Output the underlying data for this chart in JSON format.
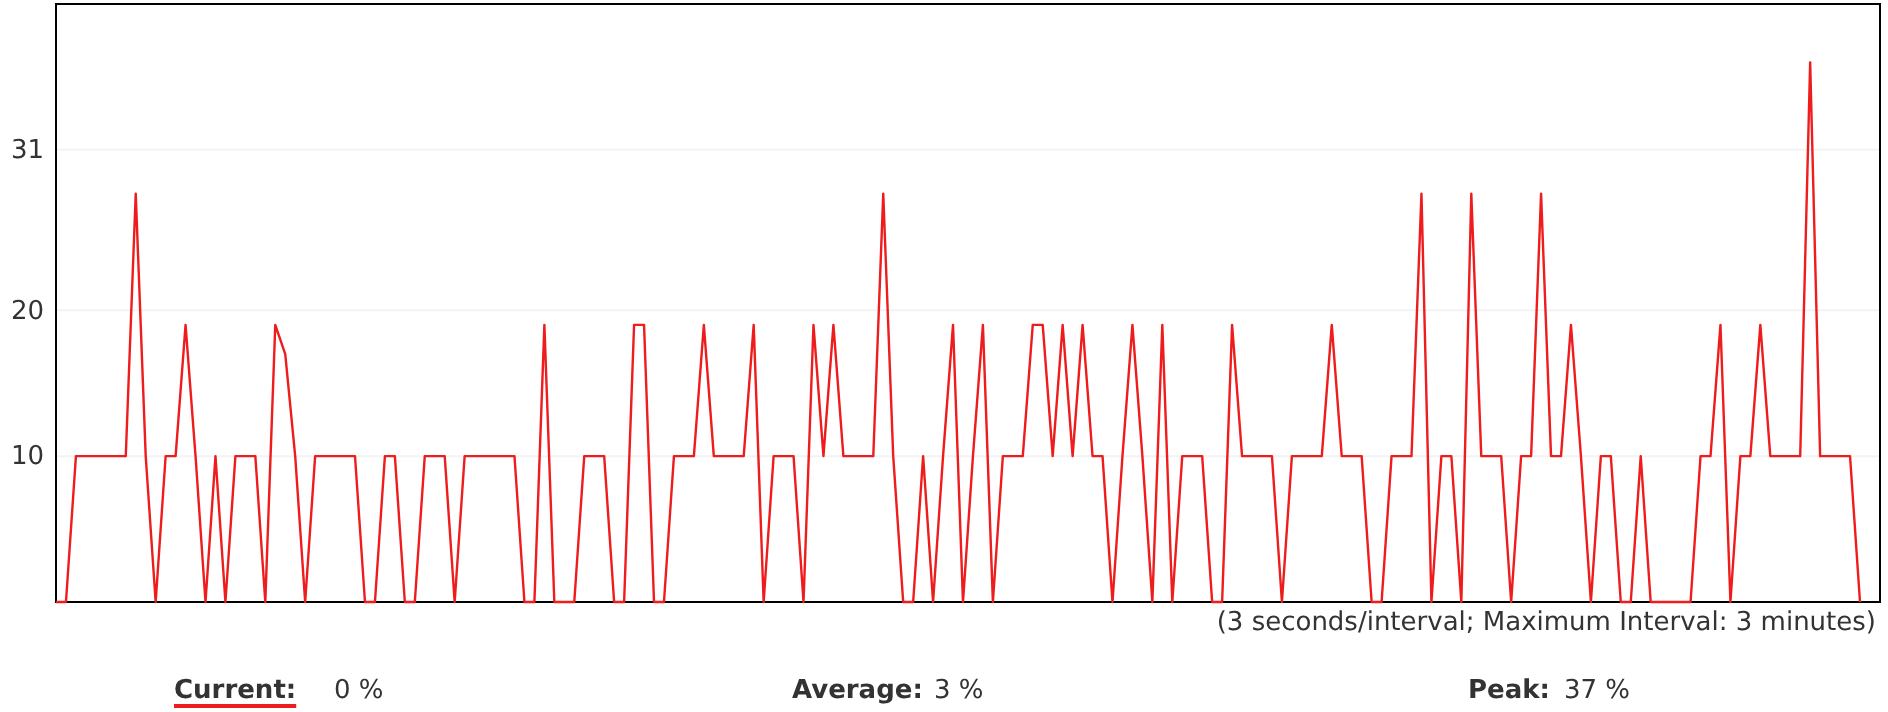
{
  "chart_data": {
    "type": "line",
    "categories": [
      null,
      null,
      null,
      null,
      null,
      null,
      null,
      null,
      null,
      null,
      null,
      null,
      null,
      null,
      null,
      null,
      null,
      null,
      null,
      null,
      null,
      null,
      null,
      null,
      null,
      null,
      null,
      null,
      null,
      null,
      null,
      null,
      null,
      null,
      null,
      null,
      null,
      null,
      null,
      null,
      null,
      null,
      null,
      null,
      null,
      null,
      null,
      null,
      null,
      null,
      null,
      null,
      null,
      null,
      null,
      null,
      null,
      null,
      null,
      null,
      null,
      null,
      null,
      null,
      null,
      null,
      null,
      null,
      null,
      null,
      null,
      null,
      null,
      null,
      null,
      null,
      null,
      null,
      null,
      null,
      null,
      null,
      null,
      null,
      null,
      null,
      null,
      null,
      null,
      null,
      null,
      null,
      null,
      null,
      null,
      null,
      null,
      null,
      null,
      null,
      null,
      null,
      null,
      null,
      null,
      null,
      null,
      null,
      null,
      null,
      null,
      null,
      null,
      null,
      null,
      null,
      null,
      null,
      null,
      null,
      null,
      null,
      null,
      null,
      null,
      null,
      null,
      null,
      null,
      null,
      null,
      null,
      null,
      null,
      null,
      null,
      null,
      null,
      null,
      null,
      null,
      null,
      null,
      null,
      null,
      null,
      null,
      null,
      null,
      null,
      null,
      null,
      null,
      null,
      null,
      null,
      null,
      null,
      null,
      null,
      null,
      null,
      null,
      null,
      null,
      null,
      null,
      null,
      null,
      null,
      null,
      null,
      null,
      null,
      null,
      null,
      null,
      null,
      null,
      null,
      null,
      null
    ],
    "series": [
      {
        "name": "Current:",
        "color": "#ee1c1c",
        "values": [
          0,
          0,
          10,
          10,
          10,
          10,
          10,
          10,
          28,
          10,
          0,
          10,
          10,
          19,
          10,
          0,
          10,
          0,
          10,
          10,
          10,
          0,
          19,
          17,
          10,
          0,
          10,
          10,
          10,
          10,
          10,
          0,
          0,
          10,
          10,
          0,
          0,
          10,
          10,
          10,
          0,
          10,
          10,
          10,
          10,
          10,
          10,
          0,
          0,
          19,
          0,
          0,
          0,
          10,
          10,
          10,
          0,
          0,
          19,
          19,
          0,
          0,
          10,
          10,
          10,
          19,
          10,
          10,
          10,
          10,
          19,
          0,
          10,
          10,
          10,
          0,
          19,
          10,
          19,
          10,
          10,
          10,
          10,
          28,
          10,
          0,
          0,
          10,
          0,
          10,
          19,
          0,
          10,
          19,
          0,
          10,
          10,
          10,
          19,
          19,
          10,
          19,
          10,
          19,
          10,
          10,
          0,
          10,
          19,
          10,
          0,
          19,
          0,
          10,
          10,
          10,
          0,
          0,
          19,
          10,
          10,
          10,
          10,
          0,
          10,
          10,
          10,
          10,
          19,
          10,
          10,
          10,
          0,
          0,
          10,
          10,
          10,
          28,
          0,
          10,
          10,
          0,
          28,
          10,
          10,
          10,
          0,
          10,
          10,
          28,
          10,
          10,
          19,
          10,
          0,
          10,
          10,
          0,
          0,
          10,
          0,
          0,
          0,
          0,
          0,
          10,
          10,
          19,
          0,
          10,
          10,
          19,
          10,
          10,
          10,
          10,
          37,
          10,
          10,
          10,
          10,
          0
        ]
      }
    ],
    "ylim": [
      0,
      41
    ],
    "yticks": [
      10,
      20,
      31
    ],
    "grid": "y",
    "legend": "bottom",
    "marker": "none",
    "line_style": "solid",
    "annotations": [
      "(3 seconds/interval; Maximum Interval: 3 minutes)",
      "0 %",
      "Average:",
      "3 %",
      "Peak:",
      "37 %"
    ]
  }
}
